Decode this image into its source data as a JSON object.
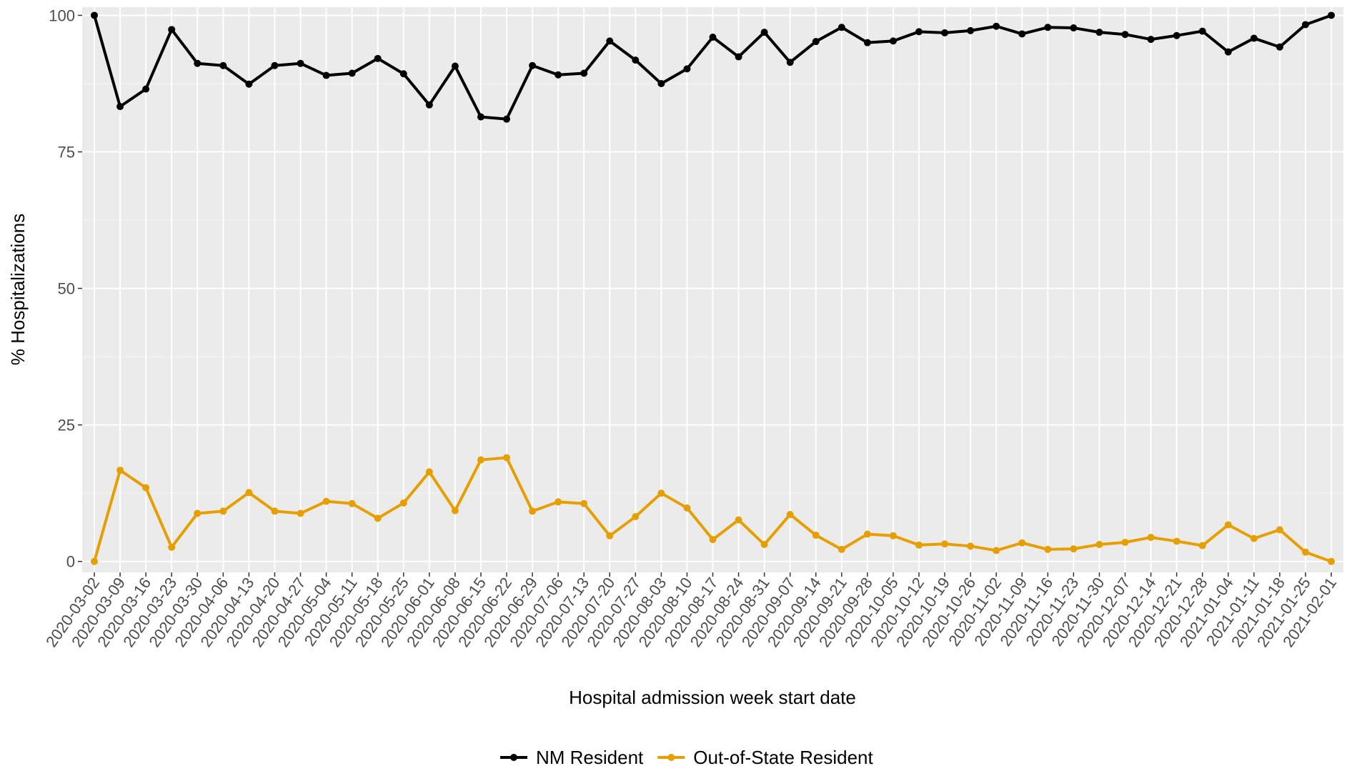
{
  "chart_data": {
    "type": "line",
    "x_label": "Hospital admission week start date",
    "y_label": "% Hospitalizations",
    "categories": [
      "2020-03-02",
      "2020-03-09",
      "2020-03-16",
      "2020-03-23",
      "2020-03-30",
      "2020-04-06",
      "2020-04-13",
      "2020-04-20",
      "2020-04-27",
      "2020-05-04",
      "2020-05-11",
      "2020-05-18",
      "2020-05-25",
      "2020-06-01",
      "2020-06-08",
      "2020-06-15",
      "2020-06-22",
      "2020-06-29",
      "2020-07-06",
      "2020-07-13",
      "2020-07-20",
      "2020-07-27",
      "2020-08-03",
      "2020-08-10",
      "2020-08-17",
      "2020-08-24",
      "2020-08-31",
      "2020-09-07",
      "2020-09-14",
      "2020-09-21",
      "2020-09-28",
      "2020-10-05",
      "2020-10-12",
      "2020-10-19",
      "2020-10-26",
      "2020-11-02",
      "2020-11-09",
      "2020-11-16",
      "2020-11-23",
      "2020-11-30",
      "2020-12-07",
      "2020-12-14",
      "2020-12-21",
      "2020-12-28",
      "2021-01-04",
      "2021-01-11",
      "2021-01-18",
      "2021-01-25",
      "2021-02-01"
    ],
    "series": [
      {
        "name": "NM Resident",
        "color": "#000000",
        "values": [
          100,
          83.3,
          86.5,
          97.4,
          91.2,
          90.8,
          87.4,
          90.8,
          91.2,
          89.0,
          89.4,
          92.1,
          89.3,
          83.6,
          90.7,
          81.4,
          81.0,
          90.8,
          89.1,
          89.4,
          95.3,
          91.8,
          87.5,
          90.2,
          96.0,
          92.4,
          96.9,
          91.4,
          95.2,
          97.8,
          95.0,
          95.3,
          97.0,
          96.8,
          97.2,
          98.0,
          96.6,
          97.8,
          97.7,
          96.9,
          96.5,
          95.6,
          96.3,
          97.1,
          93.3,
          95.8,
          94.2,
          98.3,
          100
        ]
      },
      {
        "name": "Out-of-State Resident",
        "color": "#E69F00",
        "values": [
          0,
          16.7,
          13.5,
          2.6,
          8.8,
          9.2,
          12.6,
          9.2,
          8.8,
          11.0,
          10.6,
          7.9,
          10.7,
          16.4,
          9.3,
          18.6,
          19.0,
          9.2,
          10.9,
          10.6,
          4.7,
          8.2,
          12.5,
          9.8,
          4.0,
          7.6,
          3.1,
          8.6,
          4.8,
          2.2,
          5.0,
          4.7,
          3.0,
          3.2,
          2.8,
          2.0,
          3.4,
          2.2,
          2.3,
          3.1,
          3.5,
          4.4,
          3.7,
          2.9,
          6.7,
          4.2,
          5.8,
          1.7,
          0
        ]
      }
    ],
    "ylim": [
      -2,
      101.5
    ],
    "yticks": [
      0,
      25,
      50,
      75,
      100
    ],
    "grid": true,
    "legend_position": "bottom"
  }
}
